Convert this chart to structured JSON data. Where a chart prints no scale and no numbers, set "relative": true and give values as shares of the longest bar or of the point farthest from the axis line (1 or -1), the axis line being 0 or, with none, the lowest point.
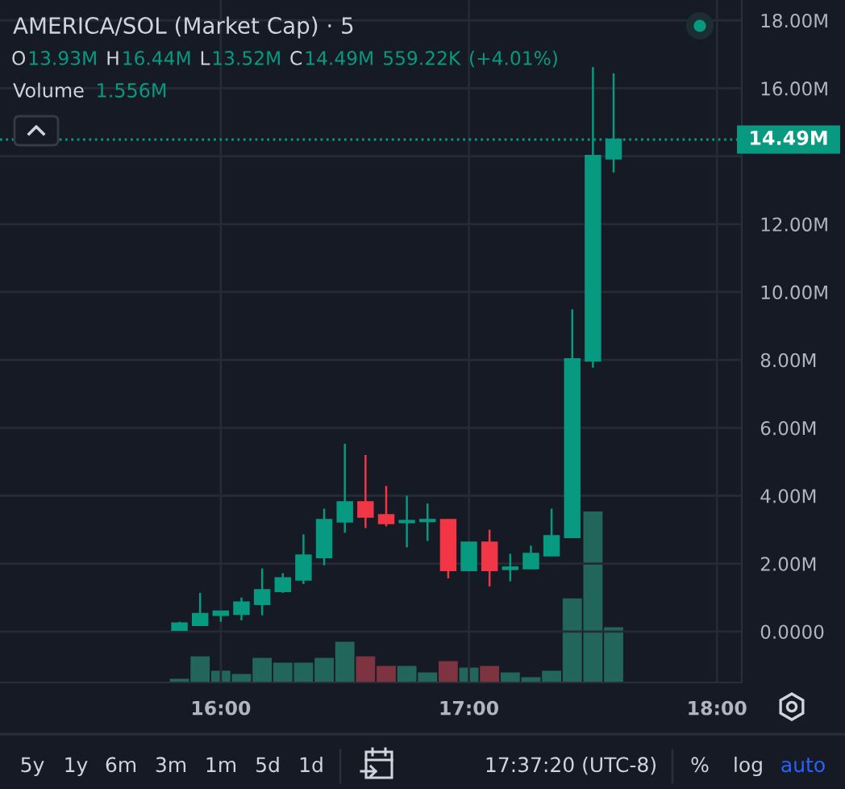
{
  "chart_data": [
    {
      "type": "candlestick",
      "title": "AMERICA/SOL (Market Cap) · 5",
      "subtitle": "O13.93M H16.44M L13.52M C14.49M 559.22K (+4.01%)",
      "x": [
        15.8333,
        15.9167,
        16,
        16.0833,
        16.1667,
        16.25,
        16.3333,
        16.4167,
        16.5,
        16.5833,
        16.6667,
        16.75,
        16.8333,
        16.9167,
        17,
        17.0833,
        17.1667,
        17.25,
        17.3333,
        17.4167,
        17.5,
        17.5833
      ],
      "ohlc": [
        [
          0.05,
          0.29,
          0.05,
          0.24
        ],
        [
          0.19,
          1.14,
          0.19,
          0.52
        ],
        [
          0.49,
          0.59,
          0.29,
          0.59
        ],
        [
          0.52,
          1.0,
          0.33,
          0.86
        ],
        [
          0.81,
          1.86,
          0.48,
          1.22
        ],
        [
          1.19,
          1.72,
          1.14,
          1.57
        ],
        [
          1.53,
          2.86,
          1.4,
          2.24
        ],
        [
          2.19,
          3.62,
          1.95,
          3.29
        ],
        [
          3.24,
          5.53,
          2.91,
          3.81
        ],
        [
          3.81,
          5.2,
          3.05,
          3.38
        ],
        [
          3.43,
          4.29,
          3.1,
          3.19
        ],
        [
          3.22,
          4.0,
          2.48,
          3.26
        ],
        [
          3.25,
          3.77,
          2.67,
          3.29
        ],
        [
          3.29,
          3.29,
          1.57,
          1.81
        ],
        [
          1.81,
          2.62,
          1.81,
          2.62
        ],
        [
          2.62,
          3.0,
          1.33,
          1.81
        ],
        [
          1.84,
          2.29,
          1.48,
          1.89
        ],
        [
          1.86,
          2.53,
          1.86,
          2.29
        ],
        [
          2.24,
          3.62,
          2.24,
          2.81
        ],
        [
          2.78,
          9.49,
          2.78,
          8.02
        ],
        [
          7.98,
          16.63,
          7.77,
          14.01
        ],
        [
          13.93,
          16.44,
          13.52,
          14.49
        ]
      ],
      "colors": [
        "#089981",
        "#089981",
        "#089981",
        "#089981",
        "#089981",
        "#089981",
        "#089981",
        "#089981",
        "#089981",
        "#f23645",
        "#f23645",
        "#089981",
        "#089981",
        "#f23645",
        "#089981",
        "#f23645",
        "#089981",
        "#089981",
        "#089981",
        "#089981",
        "#089981",
        "#089981"
      ],
      "xlim": [
        15.11,
        18.1
      ],
      "xticks": [
        {
          "value": 16,
          "label": "16:00"
        },
        {
          "value": 17,
          "label": "17:00"
        },
        {
          "value": 18,
          "label": "18:00"
        }
      ],
      "ylim": [
        -1.5,
        18.6
      ],
      "yticks": [
        {
          "value": 0,
          "label": "0.0000"
        },
        {
          "value": 2,
          "label": "2.00M"
        },
        {
          "value": 4,
          "label": "4.00M"
        },
        {
          "value": 6,
          "label": "6.00M"
        },
        {
          "value": 8,
          "label": "8.00M"
        },
        {
          "value": 10,
          "label": "10.00M"
        },
        {
          "value": 12,
          "label": "12.00M"
        },
        {
          "value": 14,
          "label": null
        },
        {
          "value": 16,
          "label": "16.00M"
        },
        {
          "value": 18,
          "label": "18.00M"
        }
      ],
      "grid": true,
      "ref_lines": [
        {
          "axis": "y",
          "value": 14.49,
          "label": "14.49M",
          "color": "#089981",
          "line_style": "dotted"
        }
      ],
      "annotations": [
        "Volume 1.556M",
        "5y",
        "1y",
        "6m",
        "3m",
        "1m",
        "5d",
        "1d",
        "17:37:20 (UTC-8)",
        "%",
        "log",
        "auto"
      ]
    },
    {
      "type": "bar",
      "relative": true,
      "xlim": [
        15.11,
        18.1
      ],
      "x": [
        15.8333,
        15.9167,
        16,
        16.0833,
        16.1667,
        16.25,
        16.3333,
        16.4167,
        16.5,
        16.5833,
        16.6667,
        16.75,
        16.8333,
        16.9167,
        17,
        17.0833,
        17.1667,
        17.25,
        17.3333,
        17.4167,
        17.5,
        17.5833
      ],
      "values": [
        0.022,
        0.153,
        0.069,
        0.05,
        0.144,
        0.116,
        0.116,
        0.144,
        0.238,
        0.153,
        0.097,
        0.097,
        0.059,
        0.125,
        0.087,
        0.097,
        0.059,
        0.031,
        0.069,
        0.492,
        1,
        0.323
      ],
      "colors": [
        "#22665b",
        "#22665b",
        "#22665b",
        "#22665b",
        "#22665b",
        "#22665b",
        "#22665b",
        "#22665b",
        "#22665b",
        "#7e3440",
        "#7e3440",
        "#22665b",
        "#22665b",
        "#7e3440",
        "#22665b",
        "#7e3440",
        "#22665b",
        "#22665b",
        "#22665b",
        "#22665b",
        "#22665b",
        "#22665b"
      ]
    }
  ]
}
